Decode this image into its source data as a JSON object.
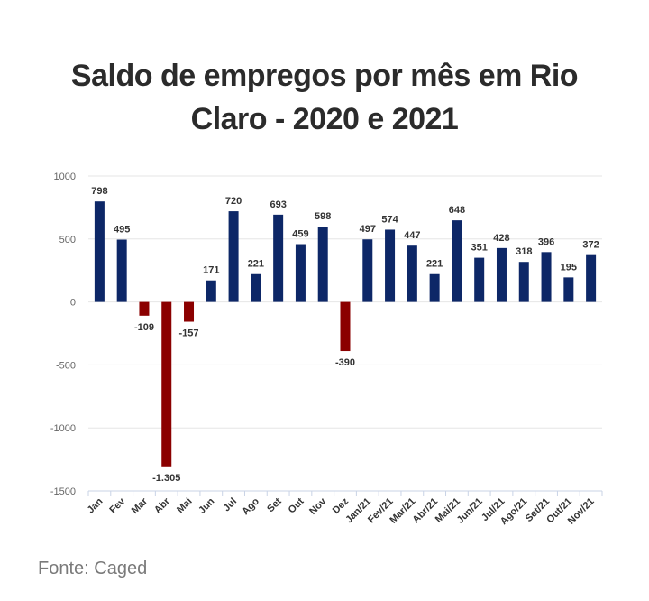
{
  "title": "Saldo de empregos por mês em Rio Claro - 2020 e 2021",
  "source": "Fonte: Caged",
  "colors": {
    "positive": "#0d2767",
    "negative": "#8b0000",
    "grid": "#e6e6e6",
    "axis": "#c9d3e6"
  },
  "chart_data": {
    "type": "bar",
    "title": "Saldo de empregos por mês em Rio Claro - 2020 e 2021",
    "categories": [
      "Jan",
      "Fev",
      "Mar",
      "Abr",
      "Mai",
      "Jun",
      "Jul",
      "Ago",
      "Set",
      "Out",
      "Nov",
      "Dez",
      "Jan/21",
      "Fev/21",
      "Mar/21",
      "Abr/21",
      "Mai/21",
      "Jun/21",
      "Jul/21",
      "Ago/21",
      "Set/21",
      "Out/21",
      "Nov/21"
    ],
    "values": [
      798,
      495,
      -109,
      -1305,
      -157,
      171,
      720,
      221,
      693,
      459,
      598,
      -390,
      497,
      574,
      447,
      221,
      648,
      351,
      428,
      318,
      396,
      195,
      372
    ],
    "value_labels": [
      "798",
      "495",
      "-109",
      "-1.305",
      "-157",
      "171",
      "720",
      "221",
      "693",
      "459",
      "598",
      "-390",
      "497",
      "574",
      "447",
      "221",
      "648",
      "351",
      "428",
      "318",
      "396",
      "195",
      "372"
    ],
    "ylim": [
      -1500,
      1000
    ],
    "yticks": [
      1000,
      500,
      0,
      -500,
      -1000,
      -1500
    ],
    "ytick_labels": [
      "1000",
      "500",
      "0",
      "-500",
      "-1000",
      "-1500"
    ],
    "grid": true,
    "legend": "none"
  }
}
